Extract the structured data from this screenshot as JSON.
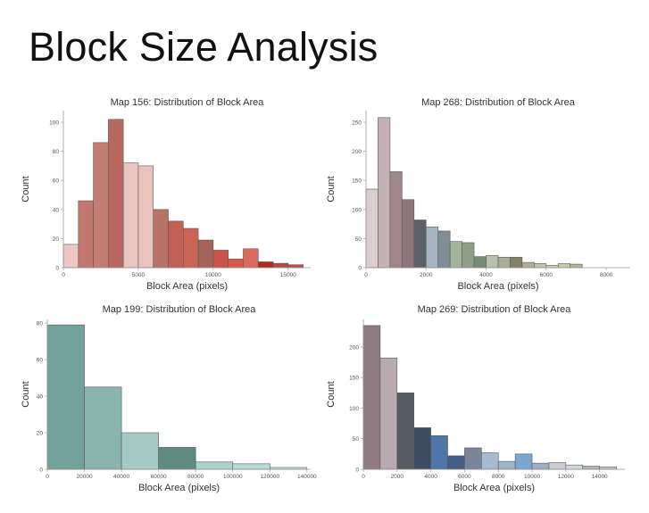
{
  "slide": {
    "title": "Block Size Analysis"
  },
  "chart_data": [
    {
      "id": "map156",
      "type": "bar",
      "title": "Map 156: Distribution of Block Area",
      "xlabel": "Block Area (pixels)",
      "ylabel": "Count",
      "xlim": [
        0,
        16500
      ],
      "ylim": [
        0,
        108
      ],
      "xticks": [
        {
          "v": 0,
          "label": "0"
        },
        {
          "v": 5000,
          "label": "5000"
        },
        {
          "v": 10000,
          "label": "10000"
        },
        {
          "v": 15000,
          "label": "15000"
        }
      ],
      "yticks": [
        {
          "v": 0,
          "label": "0"
        },
        {
          "v": 20,
          "label": "20"
        },
        {
          "v": 40,
          "label": "40"
        },
        {
          "v": 60,
          "label": "60"
        },
        {
          "v": 80,
          "label": "80"
        },
        {
          "v": 100,
          "label": "100"
        }
      ],
      "bin_start": 0,
      "bin_width": 1000,
      "values": [
        16,
        46,
        86,
        102,
        72,
        70,
        40,
        32,
        27,
        19,
        12,
        6,
        13,
        4,
        3,
        2
      ],
      "colors": [
        "#edc7c3",
        "#c17870",
        "#c37e74",
        "#b9685e",
        "#eac5c0",
        "#e9c3be",
        "#b77267",
        "#c26055",
        "#c96457",
        "#a4625a",
        "#c95346",
        "#d8584a",
        "#db6a5e",
        "#b02a20",
        "#b44c42",
        "#c24b40"
      ]
    },
    {
      "id": "map268",
      "type": "bar",
      "title": "Map 268: Distribution of Block Area",
      "xlabel": "Block Area (pixels)",
      "ylabel": "Count",
      "xlim": [
        0,
        8800
      ],
      "ylim": [
        0,
        270
      ],
      "xticks": [
        {
          "v": 0,
          "label": "0"
        },
        {
          "v": 2000,
          "label": "2000"
        },
        {
          "v": 4000,
          "label": "4000"
        },
        {
          "v": 6000,
          "label": "6000"
        },
        {
          "v": 8000,
          "label": "8000"
        }
      ],
      "yticks": [
        {
          "v": 0,
          "label": "0"
        },
        {
          "v": 50,
          "label": "50"
        },
        {
          "v": 100,
          "label": "100"
        },
        {
          "v": 150,
          "label": "150"
        },
        {
          "v": 200,
          "label": "200"
        },
        {
          "v": 250,
          "label": "250"
        }
      ],
      "bin_start": 0,
      "bin_width": 400,
      "values": [
        135,
        258,
        165,
        117,
        82,
        70,
        63,
        45,
        43,
        19,
        21,
        18,
        18,
        9,
        7,
        4,
        7,
        6
      ],
      "colors": [
        "#dccdd1",
        "#c4b1b6",
        "#9e868d",
        "#8f767d",
        "#5c5f69",
        "#a7b4c2",
        "#808c96",
        "#a3b49b",
        "#8f9e85",
        "#778c78",
        "#b7c1ae",
        "#a8ab97",
        "#838266",
        "#b5af93",
        "#c6c2a8",
        "#d3cfb7",
        "#cdc8ac",
        "#b8b397"
      ]
    },
    {
      "id": "map199",
      "type": "bar",
      "title": "Map 199: Distribution of Block Area",
      "xlabel": "Block Area (pixels)",
      "ylabel": "Count",
      "xlim": [
        0,
        142000
      ],
      "ylim": [
        0,
        82
      ],
      "xticks": [
        {
          "v": 0,
          "label": "0"
        },
        {
          "v": 20000,
          "label": "20000"
        },
        {
          "v": 40000,
          "label": "40000"
        },
        {
          "v": 60000,
          "label": "60000"
        },
        {
          "v": 80000,
          "label": "80000"
        },
        {
          "v": 100000,
          "label": "100000"
        },
        {
          "v": 120000,
          "label": "120000"
        },
        {
          "v": 140000,
          "label": "140000"
        }
      ],
      "yticks": [
        {
          "v": 0,
          "label": "0"
        },
        {
          "v": 20,
          "label": "20"
        },
        {
          "v": 40,
          "label": "40"
        },
        {
          "v": 60,
          "label": "60"
        },
        {
          "v": 80,
          "label": "80"
        }
      ],
      "bin_start": 0,
      "bin_width": 20000,
      "values": [
        79,
        45,
        20,
        12,
        4,
        3,
        1
      ],
      "colors": [
        "#73a19b",
        "#8ab4ae",
        "#a5c9c3",
        "#5f8a80",
        "#a9d3cb",
        "#b8dcd4",
        "#c8e3dd"
      ]
    },
    {
      "id": "map269",
      "type": "bar",
      "title": "Map 269: Distribution of Block Area",
      "xlabel": "Block Area (pixels)",
      "ylabel": "Count",
      "xlim": [
        0,
        15500
      ],
      "ylim": [
        0,
        245
      ],
      "xticks": [
        {
          "v": 0,
          "label": "0"
        },
        {
          "v": 2000,
          "label": "2000"
        },
        {
          "v": 4000,
          "label": "4000"
        },
        {
          "v": 6000,
          "label": "6000"
        },
        {
          "v": 8000,
          "label": "8000"
        },
        {
          "v": 10000,
          "label": "10000"
        },
        {
          "v": 12000,
          "label": "12000"
        },
        {
          "v": 14000,
          "label": "14000"
        }
      ],
      "yticks": [
        {
          "v": 0,
          "label": "0"
        },
        {
          "v": 50,
          "label": "50"
        },
        {
          "v": 100,
          "label": "100"
        },
        {
          "v": 150,
          "label": "150"
        },
        {
          "v": 200,
          "label": "200"
        }
      ],
      "bin_start": 0,
      "bin_width": 1000,
      "values": [
        235,
        182,
        125,
        68,
        55,
        22,
        35,
        27,
        13,
        25,
        10,
        11,
        7,
        5,
        4
      ],
      "colors": [
        "#8e7a80",
        "#b7aab0",
        "#565a65",
        "#3e4c63",
        "#4f76a8",
        "#465d86",
        "#7a859c",
        "#a7bbd0",
        "#9eb4cc",
        "#7ba6cf",
        "#9eb0c3",
        "#c6cdd5",
        "#d5d8dd",
        "#b1b4bb",
        "#c5c8cc"
      ]
    }
  ]
}
